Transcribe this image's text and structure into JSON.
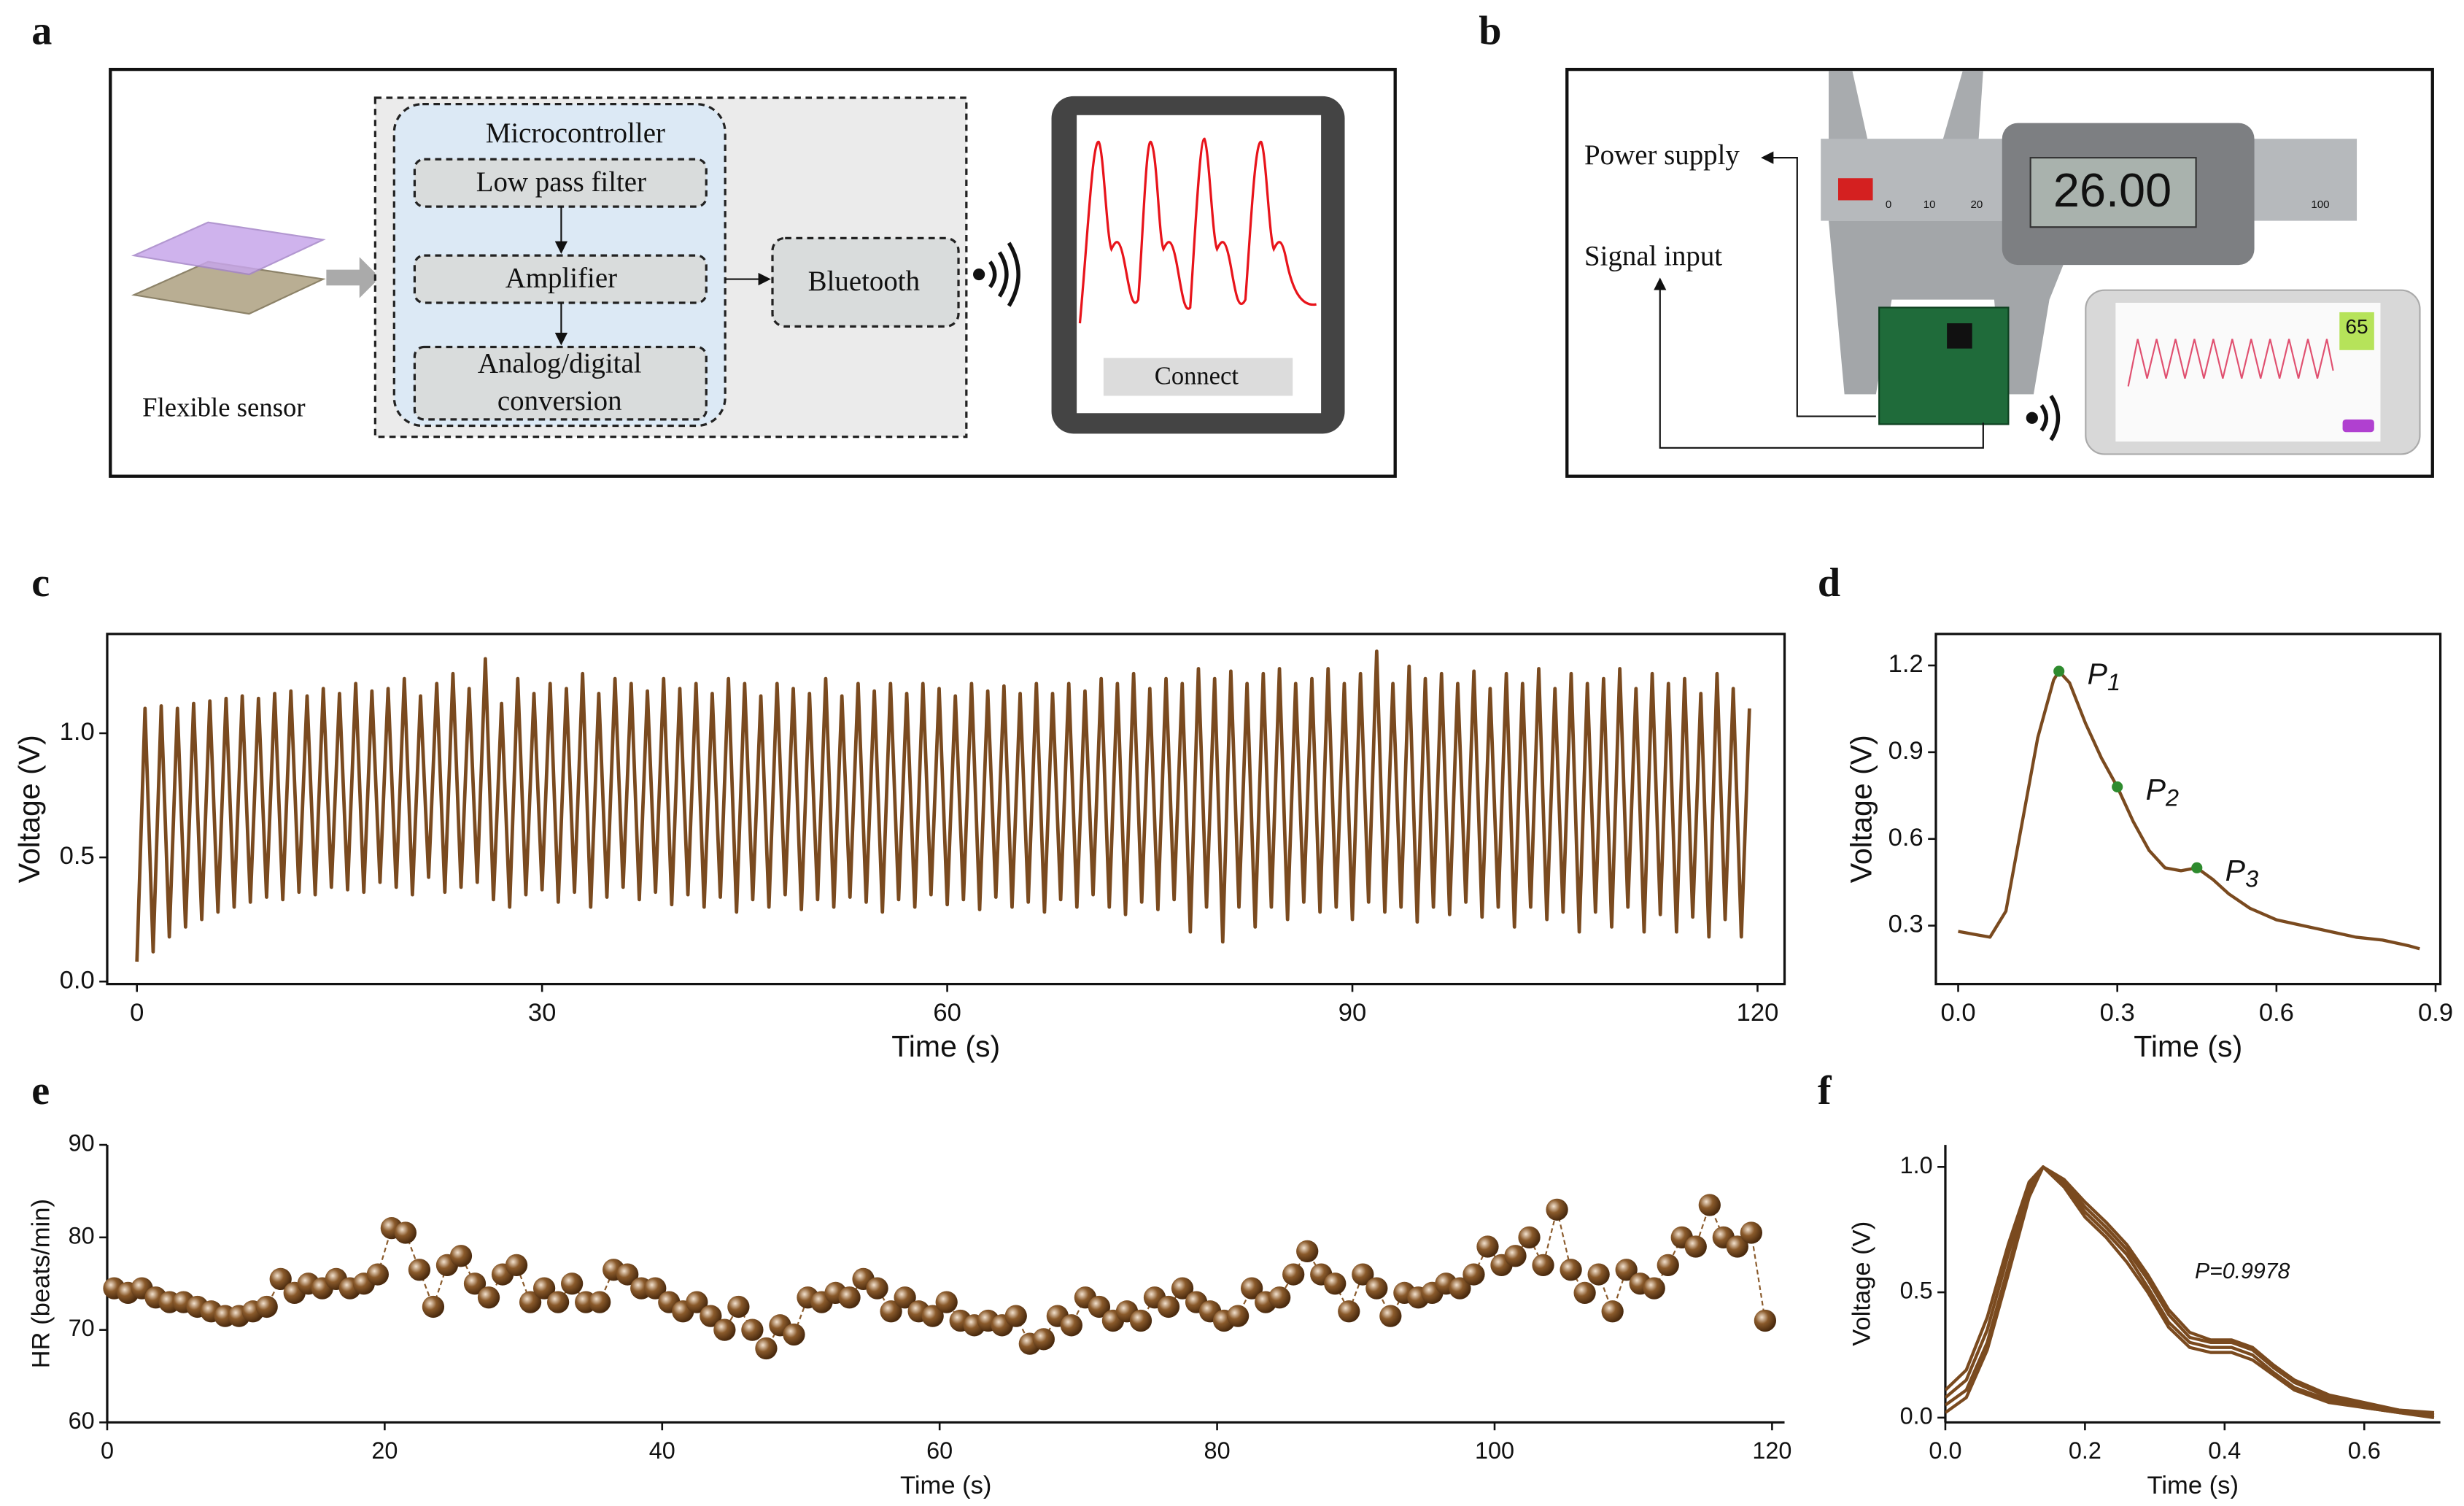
{
  "panel_labels": [
    "a",
    "b",
    "c",
    "d",
    "e",
    "f"
  ],
  "diagram_a": {
    "sensor": "Flexible sensor",
    "microcontroller": "Microcontroller",
    "filter": "Low pass filter",
    "amplifier": "Amplifier",
    "adc": [
      "Analog/digital",
      "conversion"
    ],
    "bluetooth": "Bluetooth",
    "button": "Connect"
  },
  "photo_b": {
    "power": "Power supply",
    "signal": "Signal input",
    "display": "26.00",
    "scale": [
      "0",
      "10",
      "20",
      "100"
    ],
    "phone_hr": "65"
  },
  "chart_data": [
    {
      "type": "line",
      "xlabel": "Time (s)",
      "ylabel": "Voltage (V)",
      "color": "#7a4a1f",
      "x": [
        0,
        0.6,
        1.2,
        1.8,
        2.4,
        3,
        3.6,
        4.2,
        4.8,
        5.4,
        6,
        6.6,
        7.2,
        7.8,
        8.4,
        9,
        9.6,
        10.2,
        10.8,
        11.4,
        12,
        12.6,
        13.2,
        13.8,
        14.4,
        15,
        15.6,
        16.2,
        16.8,
        17.4,
        18,
        18.6,
        19.2,
        19.8,
        20.4,
        21,
        21.6,
        22.2,
        22.8,
        23.4,
        24,
        24.6,
        25.2,
        25.8,
        26.4,
        27,
        27.6,
        28.2,
        28.8,
        29.4,
        30,
        30.6,
        31.2,
        31.8,
        32.4,
        33,
        33.6,
        34.2,
        34.8,
        35.4,
        36,
        36.6,
        37.2,
        37.8,
        38.4,
        39,
        39.6,
        40.2,
        40.8,
        41.4,
        42,
        42.6,
        43.2,
        43.8,
        44.4,
        45,
        45.6,
        46.2,
        46.8,
        47.4,
        48,
        48.6,
        49.2,
        49.8,
        50.4,
        51,
        51.6,
        52.2,
        52.8,
        53.4,
        54,
        54.6,
        55.2,
        55.8,
        56.4,
        57,
        57.6,
        58.2,
        58.8,
        59.4,
        60,
        60.6,
        61.2,
        61.8,
        62.4,
        63,
        63.6,
        64.2,
        64.8,
        65.4,
        66,
        66.6,
        67.2,
        67.8,
        68.4,
        69,
        69.6,
        70.2,
        70.8,
        71.4,
        72,
        72.6,
        73.2,
        73.8,
        74.4,
        75,
        75.6,
        76.2,
        76.8,
        77.4,
        78,
        78.6,
        79.2,
        79.8,
        80.4,
        81,
        81.6,
        82.2,
        82.8,
        83.4,
        84,
        84.6,
        85.2,
        85.8,
        86.4,
        87,
        87.6,
        88.2,
        88.8,
        89.4,
        90,
        90.6,
        91.2,
        91.8,
        92.4,
        93,
        93.6,
        94.2,
        94.8,
        95.4,
        96,
        96.6,
        97.2,
        97.8,
        98.4,
        99,
        99.6,
        100.2,
        100.8,
        101.4,
        102,
        102.6,
        103.2,
        103.8,
        104.4,
        105,
        105.6,
        106.2,
        106.8,
        107.4,
        108,
        108.6,
        109.2,
        109.8,
        110.4,
        111,
        111.6,
        112.2,
        112.8,
        113.4,
        114,
        114.6,
        115.2,
        115.8,
        116.4,
        117,
        117.6,
        118.2,
        118.8,
        119.4
      ],
      "values": [
        0.08,
        1.1,
        0.12,
        1.11,
        0.18,
        1.1,
        0.22,
        1.12,
        0.25,
        1.13,
        0.28,
        1.14,
        0.3,
        1.15,
        0.32,
        1.14,
        0.34,
        1.16,
        0.33,
        1.17,
        0.36,
        1.15,
        0.35,
        1.18,
        0.38,
        1.16,
        0.37,
        1.2,
        0.36,
        1.17,
        0.4,
        1.18,
        0.38,
        1.22,
        0.35,
        1.15,
        0.42,
        1.2,
        0.36,
        1.24,
        0.38,
        1.18,
        0.4,
        1.3,
        0.33,
        1.12,
        0.3,
        1.22,
        0.35,
        1.16,
        0.37,
        1.2,
        0.32,
        1.18,
        0.36,
        1.24,
        0.3,
        1.16,
        0.34,
        1.22,
        0.38,
        1.2,
        0.33,
        1.17,
        0.36,
        1.22,
        0.31,
        1.18,
        0.35,
        1.2,
        0.3,
        1.16,
        0.34,
        1.22,
        0.28,
        1.2,
        0.33,
        1.15,
        0.3,
        1.2,
        0.35,
        1.18,
        0.29,
        1.16,
        0.33,
        1.22,
        0.3,
        1.15,
        0.34,
        1.2,
        0.32,
        1.17,
        0.28,
        1.2,
        0.33,
        1.16,
        0.3,
        1.2,
        0.35,
        1.18,
        0.31,
        1.15,
        0.33,
        1.2,
        0.29,
        1.17,
        0.34,
        1.19,
        0.3,
        1.16,
        0.32,
        1.2,
        0.28,
        1.16,
        0.33,
        1.2,
        0.3,
        1.17,
        0.35,
        1.22,
        0.3,
        1.2,
        0.27,
        1.24,
        0.32,
        1.18,
        0.29,
        1.22,
        0.33,
        1.2,
        0.2,
        1.26,
        0.3,
        1.22,
        0.16,
        1.25,
        0.3,
        1.2,
        0.22,
        1.24,
        0.3,
        1.26,
        0.25,
        1.2,
        0.32,
        1.22,
        0.28,
        1.26,
        0.3,
        1.2,
        0.25,
        1.24,
        0.32,
        1.33,
        0.28,
        1.2,
        0.3,
        1.27,
        0.24,
        1.22,
        0.3,
        1.24,
        0.27,
        1.2,
        0.32,
        1.25,
        0.26,
        1.18,
        0.3,
        1.24,
        0.22,
        1.2,
        0.3,
        1.26,
        0.25,
        1.18,
        0.28,
        1.24,
        0.2,
        1.2,
        0.28,
        1.22,
        0.22,
        1.26,
        0.3,
        1.18,
        0.2,
        1.24,
        0.27,
        1.2,
        0.2,
        1.22,
        0.26,
        1.16,
        0.18,
        1.24,
        0.25,
        1.18,
        0.18,
        1.1
      ],
      "xlim": [
        -2.2,
        122
      ],
      "ylim": [
        -0.01,
        1.4
      ],
      "xticks": [
        0,
        30,
        60,
        90,
        120
      ],
      "yticks": [
        {
          "value": 0,
          "label": "0.0"
        },
        0.5,
        {
          "value": 1,
          "label": "1.0"
        }
      ]
    },
    {
      "type": "line",
      "xlabel": "Time (s)",
      "ylabel": "Voltage (V)",
      "color": "#7a4a1f",
      "x": [
        0,
        0.03,
        0.06,
        0.09,
        0.12,
        0.15,
        0.18,
        0.19,
        0.21,
        0.24,
        0.27,
        0.3,
        0.33,
        0.36,
        0.39,
        0.42,
        0.45,
        0.48,
        0.51,
        0.55,
        0.6,
        0.65,
        0.7,
        0.75,
        0.8,
        0.85,
        0.87
      ],
      "values": [
        0.28,
        0.27,
        0.26,
        0.35,
        0.65,
        0.95,
        1.15,
        1.18,
        1.14,
        1.0,
        0.88,
        0.78,
        0.66,
        0.56,
        0.5,
        0.49,
        0.5,
        0.46,
        0.41,
        0.36,
        0.32,
        0.3,
        0.28,
        0.26,
        0.25,
        0.23,
        0.22
      ],
      "annotation_color": "#2e8b2e",
      "annotations": [
        {
          "label": "P",
          "sub": "1",
          "x": 0.19,
          "y": 1.18
        },
        {
          "label": "P",
          "sub": "2",
          "x": 0.3,
          "y": 0.78
        },
        {
          "label": "P",
          "sub": "3",
          "x": 0.45,
          "y": 0.5
        }
      ],
      "xlim": [
        -0.042,
        0.909
      ],
      "ylim": [
        0.098,
        1.309
      ],
      "xticks": [
        {
          "value": 0,
          "label": "0.0"
        },
        0.3,
        0.6,
        0.9
      ],
      "yticks": [
        0.3,
        0.6,
        0.9,
        1.2
      ]
    },
    {
      "type": "scatter",
      "xlabel": "Time (s)",
      "ylabel": "HR (beats/min)",
      "color": "#8a5a2b",
      "x": [
        0.5,
        1.5,
        2.5,
        3.5,
        4.5,
        5.5,
        6.5,
        7.5,
        8.5,
        9.5,
        10.5,
        11.5,
        12.5,
        13.5,
        14.5,
        15.5,
        16.5,
        17.5,
        18.5,
        19.5,
        20.5,
        21.5,
        22.5,
        23.5,
        24.5,
        25.5,
        26.5,
        27.5,
        28.5,
        29.5,
        30.5,
        31.5,
        32.5,
        33.5,
        34.5,
        35.5,
        36.5,
        37.5,
        38.5,
        39.5,
        40.5,
        41.5,
        42.5,
        43.5,
        44.5,
        45.5,
        46.5,
        47.5,
        48.5,
        49.5,
        50.5,
        51.5,
        52.5,
        53.5,
        54.5,
        55.5,
        56.5,
        57.5,
        58.5,
        59.5,
        60.5,
        61.5,
        62.5,
        63.5,
        64.5,
        65.5,
        66.5,
        67.5,
        68.5,
        69.5,
        70.5,
        71.5,
        72.5,
        73.5,
        74.5,
        75.5,
        76.5,
        77.5,
        78.5,
        79.5,
        80.5,
        81.5,
        82.5,
        83.5,
        84.5,
        85.5,
        86.5,
        87.5,
        88.5,
        89.5,
        90.5,
        91.5,
        92.5,
        93.5,
        94.5,
        95.5,
        96.5,
        97.5,
        98.5,
        99.5,
        100.5,
        101.5,
        102.5,
        103.5,
        104.5,
        105.5,
        106.5,
        107.5,
        108.5,
        109.5,
        110.5,
        111.5,
        112.5,
        113.5,
        114.5,
        115.5,
        116.5,
        117.5,
        118.5,
        119.5
      ],
      "values": [
        74.5,
        74,
        74.5,
        73.5,
        73,
        73,
        72.5,
        72,
        71.5,
        71.5,
        72,
        72.5,
        75.5,
        74,
        75,
        74.5,
        75.5,
        74.5,
        75,
        76,
        81,
        80.5,
        76.5,
        72.5,
        77,
        78,
        75,
        73.5,
        76,
        77,
        73,
        74.5,
        73,
        75,
        73,
        73,
        76.5,
        76,
        74.5,
        74.5,
        73,
        72,
        73,
        71.5,
        70,
        72.5,
        70,
        68,
        70.5,
        69.5,
        73.5,
        73,
        74,
        73.5,
        75.5,
        74.5,
        72,
        73.5,
        72,
        71.5,
        73,
        71,
        70.5,
        71,
        70.5,
        71.5,
        68.5,
        69,
        71.5,
        70.5,
        73.5,
        72.5,
        71,
        72,
        71,
        73.5,
        72.5,
        74.5,
        73,
        72,
        71,
        71.5,
        74.5,
        73,
        73.5,
        76,
        78.5,
        76,
        75,
        72,
        76,
        74.5,
        71.5,
        74,
        73.5,
        74,
        75,
        74.5,
        76,
        79,
        77,
        78,
        80,
        77,
        83,
        76.5,
        74,
        76,
        72,
        76.5,
        75,
        74.5,
        77,
        80,
        79,
        83.5,
        80,
        79,
        80.5,
        71
      ],
      "xlim": [
        0,
        120.9
      ],
      "ylim": [
        60,
        90
      ],
      "xticks": [
        0,
        20,
        40,
        60,
        80,
        100,
        120
      ],
      "yticks": [
        60,
        70,
        80,
        90
      ]
    },
    {
      "type": "line",
      "xlabel": "Time (s)",
      "ylabel": "Voltage (V)",
      "annotation": "P=0.9978",
      "x": [
        0,
        0.03,
        0.06,
        0.09,
        0.12,
        0.14,
        0.17,
        0.2,
        0.23,
        0.26,
        0.29,
        0.32,
        0.35,
        0.38,
        0.41,
        0.44,
        0.47,
        0.5,
        0.55,
        0.6,
        0.65,
        0.7
      ],
      "series": [
        {
          "color": "#7a4a1f",
          "values": [
            0.08,
            0.15,
            0.35,
            0.65,
            0.92,
            1.0,
            0.93,
            0.82,
            0.74,
            0.65,
            0.52,
            0.38,
            0.3,
            0.28,
            0.28,
            0.25,
            0.18,
            0.12,
            0.07,
            0.04,
            0.02,
            0.01
          ]
        },
        {
          "color": "#7a4a1f",
          "values": [
            0.05,
            0.11,
            0.3,
            0.6,
            0.9,
            1.0,
            0.94,
            0.84,
            0.76,
            0.67,
            0.55,
            0.41,
            0.32,
            0.3,
            0.3,
            0.27,
            0.2,
            0.14,
            0.08,
            0.05,
            0.03,
            0.01
          ]
        },
        {
          "color": "#7a4a1f",
          "values": [
            0.11,
            0.19,
            0.4,
            0.69,
            0.94,
            1.0,
            0.92,
            0.8,
            0.72,
            0.62,
            0.5,
            0.36,
            0.28,
            0.26,
            0.26,
            0.23,
            0.17,
            0.11,
            0.06,
            0.04,
            0.02,
            0.0
          ]
        },
        {
          "color": "#7a4a1f",
          "values": [
            0.02,
            0.08,
            0.27,
            0.57,
            0.88,
            1.0,
            0.95,
            0.86,
            0.78,
            0.69,
            0.57,
            0.43,
            0.34,
            0.31,
            0.31,
            0.28,
            0.21,
            0.15,
            0.09,
            0.06,
            0.03,
            0.02
          ]
        }
      ],
      "xlim": [
        0,
        0.709
      ],
      "ylim": [
        -0.019,
        1.088
      ],
      "xticks": [
        {
          "value": 0,
          "label": "0.0"
        },
        0.2,
        0.4,
        0.6
      ],
      "yticks": [
        {
          "value": 0,
          "label": "0.0"
        },
        0.5,
        {
          "value": 1,
          "label": "1.0"
        }
      ]
    }
  ]
}
